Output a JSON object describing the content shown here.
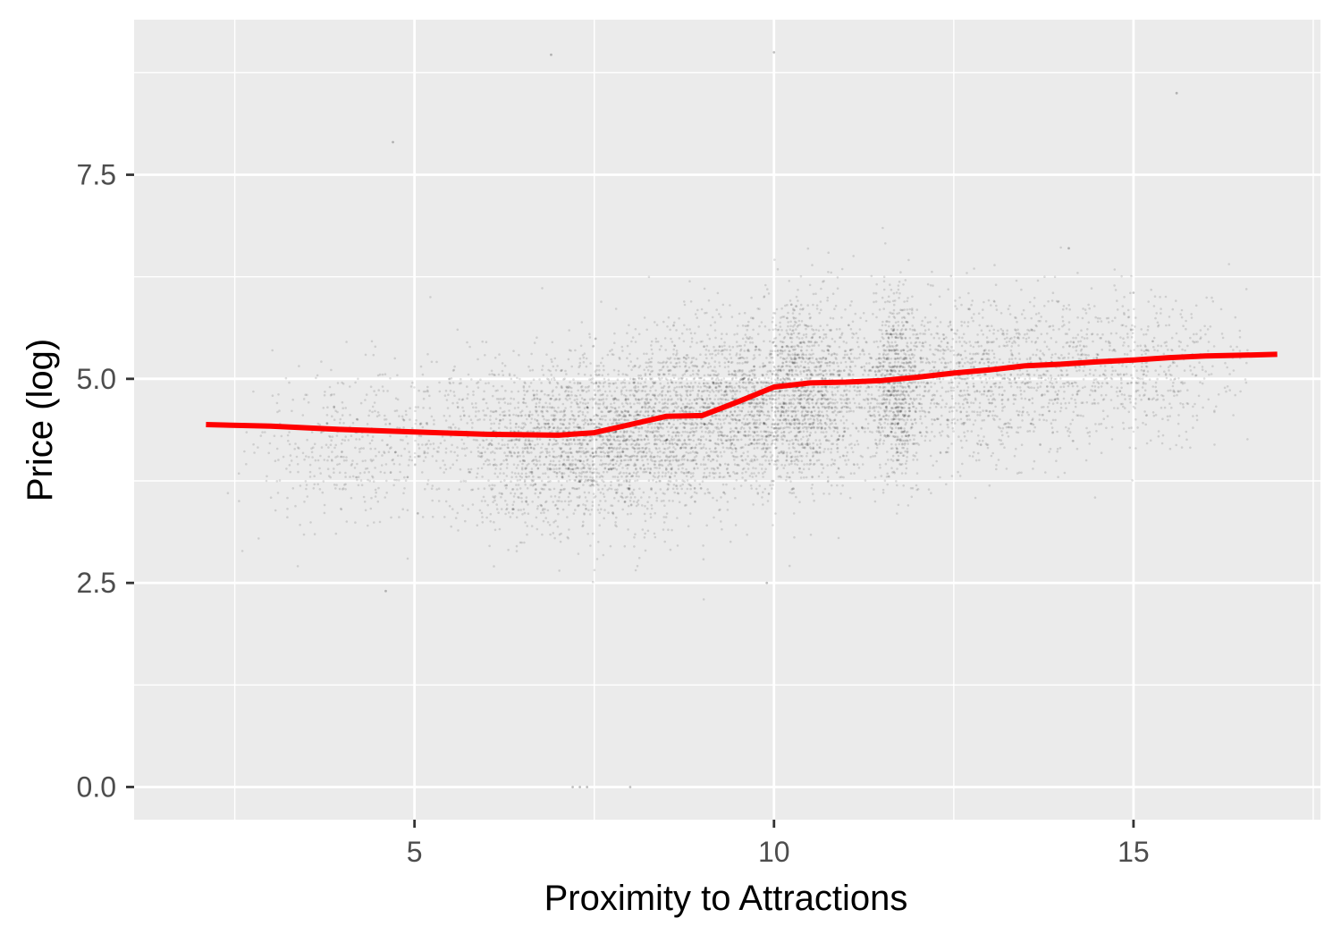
{
  "chart_data": {
    "type": "scatter",
    "title": "",
    "xlabel": "Proximity to Attractions",
    "ylabel": "Price (log)",
    "xlim": [
      1.1,
      17.6
    ],
    "ylim": [
      -0.4,
      9.4
    ],
    "x_ticks": [
      5,
      10,
      15
    ],
    "x_tick_labels": [
      "5",
      "10",
      "15"
    ],
    "x_minor_ticks": [
      2.5,
      7.5,
      12.5,
      17.5
    ],
    "y_ticks": [
      0.0,
      2.5,
      5.0,
      7.5
    ],
    "y_tick_labels": [
      "0.0",
      "2.5",
      "5.0",
      "7.5"
    ],
    "y_minor_ticks": [
      1.25,
      3.75,
      6.25,
      8.75
    ],
    "grid": true,
    "legend": "none",
    "colors": {
      "panel_background": "#EBEBEB",
      "grid_line": "#FFFFFF",
      "points": "#000000",
      "smooth_line": "#FF0000",
      "tick_label": "#4D4D4D",
      "axis_title": "#000000"
    },
    "points_description_values": {
      "x_range": [
        2.0,
        16.6
      ],
      "y_range": [
        0.0,
        9.0
      ],
      "point_alpha": 0.12
    },
    "point_clusters": [
      {
        "x_center": 4.1,
        "x_spread": 0.7,
        "y_center": 4.2,
        "y_spread": 0.45,
        "count": 420
      },
      {
        "x_center": 7.4,
        "x_spread": 1.1,
        "y_center": 4.2,
        "y_spread": 0.5,
        "count": 2600
      },
      {
        "x_center": 9.6,
        "x_spread": 1.0,
        "y_center": 4.7,
        "y_spread": 0.5,
        "count": 2200
      },
      {
        "x_center": 10.4,
        "x_spread": 0.35,
        "y_center": 4.9,
        "y_spread": 0.55,
        "count": 700
      },
      {
        "x_center": 11.7,
        "x_spread": 0.15,
        "y_center": 4.9,
        "y_spread": 0.55,
        "count": 600
      },
      {
        "x_center": 12.6,
        "x_spread": 1.0,
        "y_center": 5.0,
        "y_spread": 0.5,
        "count": 1300
      },
      {
        "x_center": 14.9,
        "x_spread": 0.9,
        "y_center": 5.15,
        "y_spread": 0.45,
        "count": 650
      }
    ],
    "outlier_points": [
      {
        "x": 7.2,
        "y": 0.0
      },
      {
        "x": 7.3,
        "y": 0.0
      },
      {
        "x": 7.4,
        "y": 0.0
      },
      {
        "x": 8.0,
        "y": 0.0
      },
      {
        "x": 10.0,
        "y": 9.0
      },
      {
        "x": 6.9,
        "y": 8.97
      },
      {
        "x": 15.6,
        "y": 8.5
      },
      {
        "x": 4.7,
        "y": 7.9
      },
      {
        "x": 14.1,
        "y": 6.6
      },
      {
        "x": 4.6,
        "y": 2.4
      },
      {
        "x": 9.9,
        "y": 2.5
      }
    ],
    "smooth_line": {
      "x": [
        2.1,
        3.0,
        4.0,
        5.0,
        6.0,
        7.0,
        7.5,
        8.0,
        8.5,
        9.0,
        9.5,
        10.0,
        10.5,
        11.0,
        11.5,
        12.0,
        12.5,
        13.0,
        13.5,
        14.0,
        14.5,
        15.0,
        15.5,
        16.0,
        16.5,
        17.0
      ],
      "y": [
        4.44,
        4.42,
        4.38,
        4.35,
        4.32,
        4.31,
        4.34,
        4.44,
        4.54,
        4.55,
        4.72,
        4.9,
        4.95,
        4.96,
        4.98,
        5.02,
        5.07,
        5.11,
        5.16,
        5.18,
        5.21,
        5.23,
        5.26,
        5.28,
        5.29,
        5.3
      ]
    }
  }
}
